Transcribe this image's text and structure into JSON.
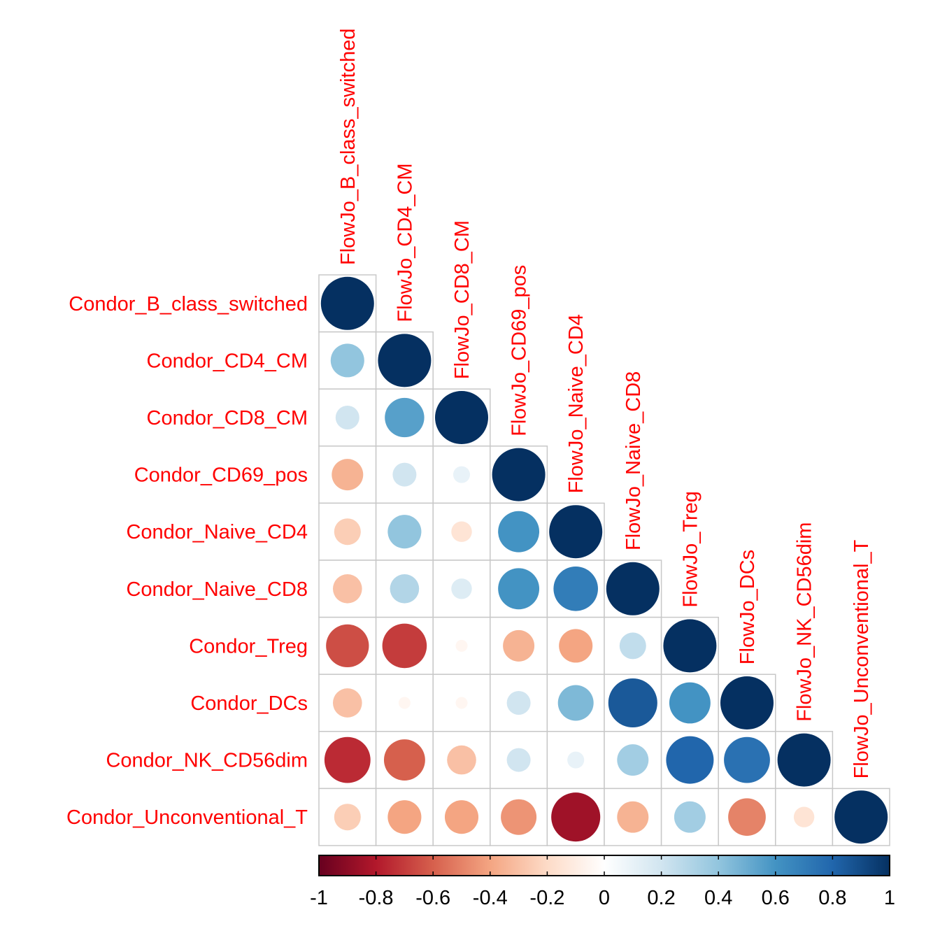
{
  "chart_data": {
    "type": "heatmap",
    "subtype": "correlation-circles-lower-triangle",
    "title": "",
    "rows": [
      "Condor_B_class_switched",
      "Condor_CD4_CM",
      "Condor_CD8_CM",
      "Condor_CD69_pos",
      "Condor_Naive_CD4",
      "Condor_Naive_CD8",
      "Condor_Treg",
      "Condor_DCs",
      "Condor_NK_CD56dim",
      "Condor_Unconventional_T"
    ],
    "columns": [
      "FlowJo_B_class_switched",
      "FlowJo_CD4_CM",
      "FlowJo_CD8_CM",
      "FlowJo_CD69_pos",
      "FlowJo_Naive_CD4",
      "FlowJo_Naive_CD8",
      "FlowJo_Treg",
      "FlowJo_DCs",
      "FlowJo_NK_CD56dim",
      "FlowJo_Unconventional_T"
    ],
    "values": [
      [
        1.0
      ],
      [
        0.4,
        1.0
      ],
      [
        0.2,
        0.55,
        1.0
      ],
      [
        -0.35,
        0.2,
        0.1,
        1.0
      ],
      [
        -0.25,
        0.4,
        -0.15,
        0.6,
        1.0
      ],
      [
        -0.3,
        0.3,
        0.15,
        0.6,
        0.7,
        1.0
      ],
      [
        -0.65,
        -0.7,
        -0.05,
        -0.35,
        -0.4,
        0.25,
        1.0
      ],
      [
        -0.3,
        -0.05,
        -0.05,
        0.2,
        0.45,
        0.85,
        0.6,
        1.0
      ],
      [
        -0.75,
        -0.6,
        -0.3,
        0.2,
        0.1,
        0.35,
        0.8,
        0.75,
        1.0
      ],
      [
        -0.25,
        -0.4,
        -0.4,
        -0.45,
        -0.85,
        -0.35,
        0.35,
        -0.5,
        -0.15,
        1.0
      ]
    ],
    "colorbar": {
      "range": [
        -1,
        1
      ],
      "ticks": [
        "-1",
        "-0.8",
        "-0.6",
        "-0.4",
        "-0.2",
        "0",
        "0.2",
        "0.4",
        "0.6",
        "0.8",
        "1"
      ],
      "colors": [
        "#67001f",
        "#b2182b",
        "#d6604d",
        "#f4a582",
        "#fddbc7",
        "#ffffff",
        "#d1e5f0",
        "#92c5de",
        "#4393c3",
        "#2166ac",
        "#053061"
      ]
    }
  }
}
